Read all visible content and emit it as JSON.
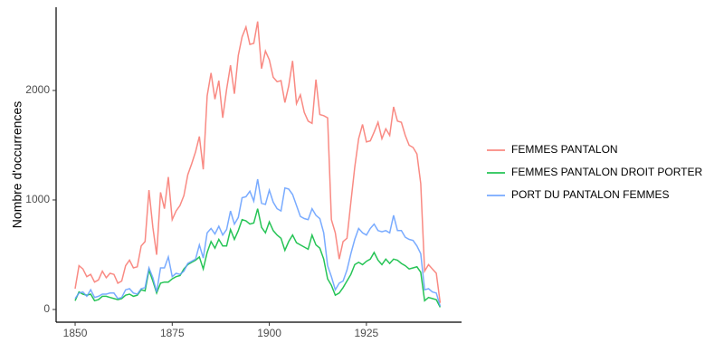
{
  "chart_data": {
    "type": "line",
    "y_label": "Nombre d'occurrences",
    "x": [
      1850,
      1851,
      1852,
      1853,
      1854,
      1855,
      1856,
      1857,
      1858,
      1859,
      1860,
      1861,
      1862,
      1863,
      1864,
      1865,
      1866,
      1867,
      1868,
      1869,
      1870,
      1871,
      1872,
      1873,
      1874,
      1875,
      1876,
      1877,
      1878,
      1879,
      1880,
      1881,
      1882,
      1883,
      1884,
      1885,
      1886,
      1887,
      1888,
      1889,
      1890,
      1891,
      1892,
      1893,
      1894,
      1895,
      1896,
      1897,
      1898,
      1899,
      1900,
      1901,
      1902,
      1903,
      1904,
      1905,
      1906,
      1907,
      1908,
      1909,
      1910,
      1911,
      1912,
      1913,
      1914,
      1915,
      1916,
      1917,
      1918,
      1919,
      1920,
      1921,
      1922,
      1923,
      1924,
      1925,
      1926,
      1927,
      1928,
      1929,
      1930,
      1931,
      1932,
      1933,
      1934,
      1935,
      1936,
      1937,
      1938,
      1939,
      1940,
      1941,
      1942,
      1943,
      1944
    ],
    "series": [
      {
        "name": "FEMMES PANTALON",
        "color": "#F8766D",
        "values": [
          190,
          400,
          370,
          300,
          320,
          250,
          270,
          350,
          290,
          330,
          320,
          240,
          260,
          400,
          450,
          380,
          390,
          580,
          620,
          1090,
          750,
          500,
          1070,
          920,
          1210,
          820,
          900,
          950,
          1040,
          1230,
          1330,
          1440,
          1580,
          1280,
          1950,
          2160,
          1920,
          2090,
          1750,
          2010,
          2230,
          1970,
          2320,
          2490,
          2580,
          2420,
          2430,
          2630,
          2200,
          2360,
          2280,
          2120,
          2080,
          2090,
          1890,
          2040,
          2270,
          1880,
          1960,
          1800,
          1720,
          1700,
          2100,
          1780,
          1770,
          1750,
          820,
          700,
          460,
          620,
          650,
          980,
          1300,
          1560,
          1690,
          1530,
          1540,
          1620,
          1710,
          1560,
          1650,
          1590,
          1850,
          1720,
          1710,
          1590,
          1500,
          1480,
          1420,
          1150,
          350,
          410,
          370,
          330,
          60
        ]
      },
      {
        "name": "FEMMES PANTALON DROIT PORTER",
        "color": "#00BA38",
        "values": [
          80,
          160,
          140,
          130,
          140,
          80,
          90,
          120,
          120,
          110,
          100,
          90,
          100,
          130,
          140,
          120,
          130,
          180,
          170,
          360,
          260,
          150,
          240,
          250,
          250,
          280,
          300,
          310,
          370,
          410,
          430,
          450,
          480,
          370,
          520,
          620,
          560,
          640,
          580,
          580,
          730,
          640,
          720,
          820,
          810,
          780,
          790,
          920,
          750,
          700,
          800,
          720,
          680,
          650,
          540,
          620,
          680,
          610,
          590,
          570,
          550,
          680,
          590,
          560,
          460,
          280,
          220,
          130,
          150,
          200,
          260,
          320,
          410,
          430,
          410,
          440,
          460,
          520,
          450,
          410,
          460,
          420,
          460,
          450,
          420,
          400,
          370,
          380,
          390,
          340,
          80,
          110,
          100,
          90,
          20
        ]
      },
      {
        "name": "PORT DU PANTALON FEMMES",
        "color": "#619CFF",
        "values": [
          100,
          150,
          160,
          120,
          180,
          110,
          120,
          140,
          140,
          150,
          150,
          100,
          110,
          180,
          190,
          150,
          140,
          190,
          200,
          380,
          290,
          160,
          380,
          380,
          480,
          300,
          330,
          320,
          350,
          420,
          440,
          460,
          590,
          470,
          700,
          740,
          690,
          760,
          680,
          730,
          900,
          780,
          840,
          1020,
          1030,
          1080,
          990,
          1190,
          970,
          960,
          1090,
          980,
          920,
          900,
          1110,
          1100,
          1050,
          950,
          850,
          830,
          820,
          920,
          860,
          830,
          700,
          400,
          300,
          180,
          240,
          260,
          360,
          510,
          640,
          740,
          700,
          680,
          740,
          780,
          720,
          710,
          720,
          700,
          860,
          720,
          720,
          660,
          640,
          630,
          580,
          510,
          180,
          190,
          160,
          150,
          30
        ]
      }
    ],
    "xlim": [
      1845.1,
      1949.5
    ],
    "ylim": [
      -116,
      2760
    ],
    "xticks": [
      1850,
      1875,
      1900,
      1925
    ],
    "yticks": [
      0,
      1000,
      2000
    ],
    "grid": false,
    "legend": "right"
  }
}
